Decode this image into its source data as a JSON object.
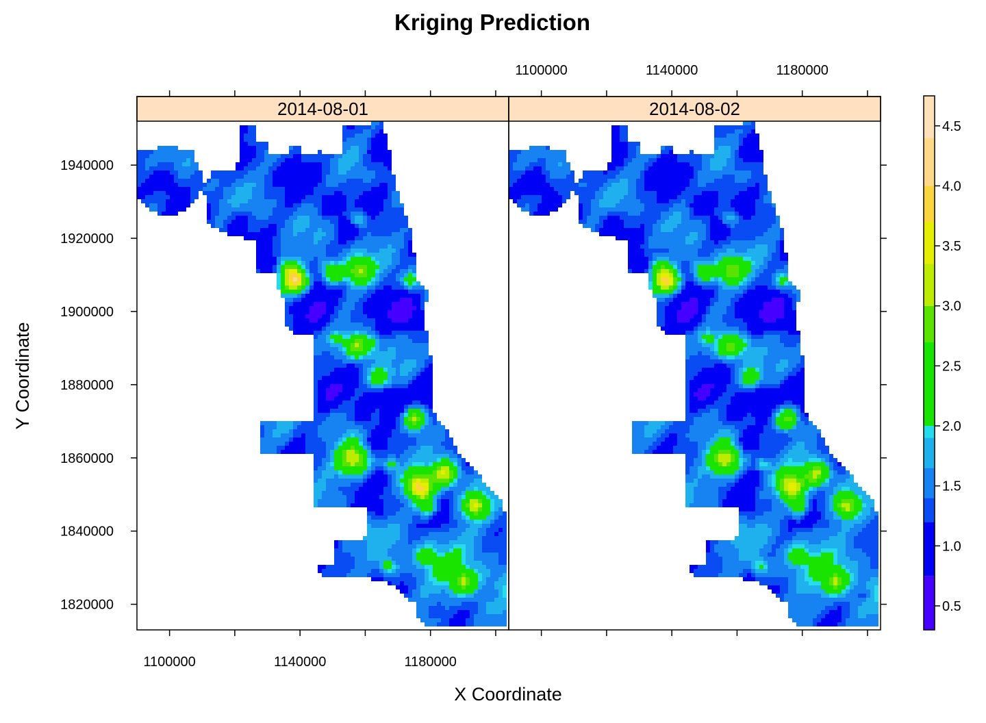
{
  "chart_data": {
    "type": "heatmap",
    "title": "Kriging Prediction",
    "xlabel": "X Coordinate",
    "ylabel": "Y Coordinate",
    "xlim": [
      1090000,
      1204000
    ],
    "ylim": [
      1813000,
      1952000
    ],
    "x_ticks": [
      1100000,
      1120000,
      1140000,
      1160000,
      1180000,
      1200000
    ],
    "x_tick_labels": [
      "1100000",
      "1140000",
      "1180000"
    ],
    "y_ticks": [
      1820000,
      1840000,
      1860000,
      1880000,
      1900000,
      1920000,
      1940000
    ],
    "y_tick_labels": [
      "1820000",
      "1840000",
      "1860000",
      "1880000",
      "1900000",
      "1920000",
      "1940000"
    ],
    "panels": [
      {
        "label": "2014-08-01",
        "intensity": 1.0
      },
      {
        "label": "2014-08-02",
        "intensity": 0.93
      }
    ],
    "colorbar": {
      "breaks": [
        0.3,
        0.75,
        1.2,
        1.4,
        1.65,
        1.9,
        2.0,
        2.7,
        3.0,
        3.35,
        3.7,
        4.0,
        4.4,
        4.75
      ],
      "colors": [
        "#4500ff",
        "#0000f5",
        "#0a4cf4",
        "#1782f1",
        "#1fb0ee",
        "#25dbec",
        "#19e400",
        "#5ae300",
        "#bdec00",
        "#e6ee00",
        "#fcd440",
        "#fed98a",
        "#ffe0b8"
      ],
      "tick_values": [
        0.5,
        1.0,
        1.5,
        2.0,
        2.5,
        3.0,
        3.5,
        4.0,
        4.5
      ],
      "tick_labels": [
        "0.5",
        "1.0",
        "1.5",
        "2.0",
        "2.5",
        "3.0",
        "3.5",
        "4.0",
        "4.5"
      ]
    },
    "strip_color": "#ffe0c0",
    "grid": false,
    "legend": "right"
  }
}
